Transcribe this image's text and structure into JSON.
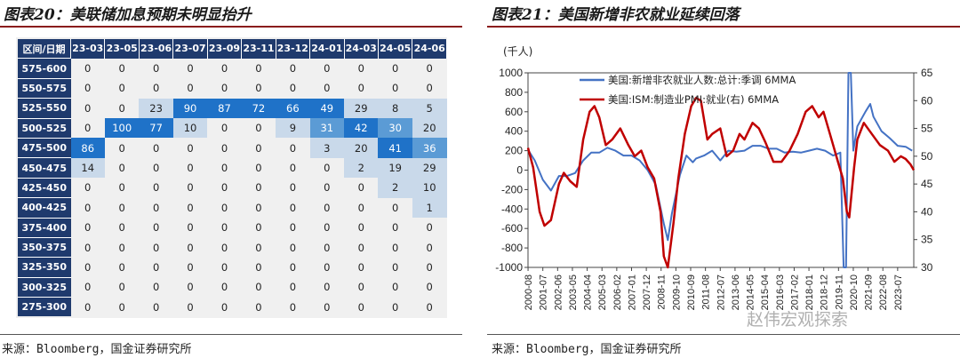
{
  "left_panel": {
    "title": "图表20：美联储加息预期未明显抬升",
    "source": "来源：Bloomberg，国金证券研究所"
  },
  "right_panel": {
    "title": "图表21：美国新增非农就业延续回落",
    "source": "来源：Bloomberg，国金证券研究所"
  },
  "watermark": "赵伟宏观探索",
  "colors": {
    "header_bg": "#1f3a6d",
    "cell_light": "#c9d9ea",
    "cell_mid": "#5b9bd5",
    "cell_strong": "#1f72c8",
    "line_blue": "#4472c4",
    "line_red": "#c00000"
  },
  "chart_data": [
    {
      "type": "table",
      "corner_label": "区间/日期",
      "columns": [
        "23-03",
        "23-05",
        "23-06",
        "23-07",
        "23-09",
        "23-11",
        "23-12",
        "24-01",
        "24-03",
        "24-05",
        "24-06"
      ],
      "rows": [
        {
          "label": "575-600",
          "values": [
            0,
            0,
            0,
            0,
            0,
            0,
            0,
            0,
            0,
            0,
            0
          ]
        },
        {
          "label": "550-575",
          "values": [
            0,
            0,
            0,
            0,
            0,
            0,
            0,
            0,
            0,
            0,
            0
          ]
        },
        {
          "label": "525-550",
          "values": [
            0,
            0,
            23,
            90,
            87,
            72,
            66,
            49,
            29,
            8,
            5
          ]
        },
        {
          "label": "500-525",
          "values": [
            0,
            100,
            77,
            10,
            0,
            0,
            9,
            31,
            42,
            30,
            20
          ]
        },
        {
          "label": "475-500",
          "values": [
            86,
            0,
            0,
            0,
            0,
            0,
            0,
            3,
            20,
            41,
            36
          ]
        },
        {
          "label": "450-475",
          "values": [
            14,
            0,
            0,
            0,
            0,
            0,
            0,
            0,
            2,
            19,
            29
          ]
        },
        {
          "label": "425-450",
          "values": [
            0,
            0,
            0,
            0,
            0,
            0,
            0,
            0,
            0,
            2,
            10
          ]
        },
        {
          "label": "400-425",
          "values": [
            0,
            0,
            0,
            0,
            0,
            0,
            0,
            0,
            0,
            0,
            1
          ]
        },
        {
          "label": "375-400",
          "values": [
            0,
            0,
            0,
            0,
            0,
            0,
            0,
            0,
            0,
            0,
            0
          ]
        },
        {
          "label": "350-375",
          "values": [
            0,
            0,
            0,
            0,
            0,
            0,
            0,
            0,
            0,
            0,
            0
          ]
        },
        {
          "label": "325-350",
          "values": [
            0,
            0,
            0,
            0,
            0,
            0,
            0,
            0,
            0,
            0,
            0
          ]
        },
        {
          "label": "300-325",
          "values": [
            0,
            0,
            0,
            0,
            0,
            0,
            0,
            0,
            0,
            0,
            0
          ]
        },
        {
          "label": "275-300",
          "values": [
            0,
            0,
            0,
            0,
            0,
            0,
            0,
            0,
            0,
            0,
            0
          ]
        }
      ]
    },
    {
      "type": "line",
      "unit_label": "(千人)",
      "x_ticks": [
        "2000-08",
        "2001-07",
        "2002-06",
        "2003-05",
        "2004-04",
        "2005-03",
        "2006-02",
        "2007-01",
        "2007-12",
        "2008-11",
        "2009-10",
        "2010-09",
        "2011-08",
        "2012-07",
        "2013-06",
        "2014-05",
        "2015-04",
        "2016-03",
        "2017-02",
        "2018-01",
        "2018-12",
        "2019-11",
        "2020-10",
        "2021-09",
        "2022-08",
        "2023-07"
      ],
      "x_range": [
        2000.58,
        2024.5
      ],
      "ylim_left": [
        -1000,
        1000
      ],
      "yticks_left": [
        -1000,
        -800,
        -600,
        -400,
        -200,
        0,
        200,
        400,
        600,
        800,
        1000
      ],
      "ylim_right": [
        30,
        65
      ],
      "yticks_right": [
        30,
        35,
        40,
        45,
        50,
        55,
        60,
        65
      ],
      "grid": false,
      "legend_position": "top-left",
      "series": [
        {
          "name": "美国:新增非农就业人数:总计:季调 6MMA",
          "axis": "left",
          "points": [
            [
              2000.58,
              210
            ],
            [
              2001.0,
              100
            ],
            [
              2001.5,
              -100
            ],
            [
              2002.0,
              -210
            ],
            [
              2002.5,
              -60
            ],
            [
              2003.0,
              -60
            ],
            [
              2003.5,
              -30
            ],
            [
              2004.0,
              100
            ],
            [
              2004.5,
              180
            ],
            [
              2005.0,
              180
            ],
            [
              2005.5,
              230
            ],
            [
              2006.0,
              200
            ],
            [
              2006.5,
              150
            ],
            [
              2007.0,
              150
            ],
            [
              2007.5,
              100
            ],
            [
              2008.0,
              0
            ],
            [
              2008.5,
              -150
            ],
            [
              2009.0,
              -550
            ],
            [
              2009.25,
              -720
            ],
            [
              2009.5,
              -450
            ],
            [
              2010.0,
              -50
            ],
            [
              2010.4,
              150
            ],
            [
              2010.8,
              80
            ],
            [
              2011.0,
              120
            ],
            [
              2011.5,
              150
            ],
            [
              2012.0,
              200
            ],
            [
              2012.5,
              100
            ],
            [
              2013.0,
              200
            ],
            [
              2013.5,
              190
            ],
            [
              2014.0,
              200
            ],
            [
              2014.5,
              250
            ],
            [
              2015.0,
              250
            ],
            [
              2015.5,
              220
            ],
            [
              2016.0,
              220
            ],
            [
              2016.5,
              180
            ],
            [
              2017.0,
              190
            ],
            [
              2017.5,
              180
            ],
            [
              2018.0,
              200
            ],
            [
              2018.5,
              220
            ],
            [
              2019.0,
              200
            ],
            [
              2019.5,
              150
            ],
            [
              2019.95,
              180
            ],
            [
              2020.15,
              -1000
            ],
            [
              2020.2,
              -1000
            ],
            [
              2020.3,
              -1000
            ],
            [
              2020.45,
              1000
            ],
            [
              2020.6,
              1000
            ],
            [
              2020.75,
              200
            ],
            [
              2021.0,
              450
            ],
            [
              2021.5,
              600
            ],
            [
              2021.8,
              680
            ],
            [
              2022.0,
              550
            ],
            [
              2022.5,
              400
            ],
            [
              2023.0,
              330
            ],
            [
              2023.5,
              250
            ],
            [
              2024.0,
              240
            ],
            [
              2024.4,
              200
            ]
          ]
        },
        {
          "name": "美国:ISM:制造业PMI:就业(右) 6MMA",
          "axis": "right",
          "points": [
            [
              2000.58,
              51.5
            ],
            [
              2000.9,
              48
            ],
            [
              2001.3,
              40
            ],
            [
              2001.6,
              37.5
            ],
            [
              2002.0,
              38.5
            ],
            [
              2002.5,
              45
            ],
            [
              2002.8,
              47
            ],
            [
              2003.2,
              45.5
            ],
            [
              2003.6,
              44.5
            ],
            [
              2004.0,
              53
            ],
            [
              2004.4,
              58
            ],
            [
              2004.7,
              59
            ],
            [
              2005.0,
              57
            ],
            [
              2005.4,
              52
            ],
            [
              2005.8,
              53
            ],
            [
              2006.3,
              55
            ],
            [
              2006.8,
              52
            ],
            [
              2007.2,
              50
            ],
            [
              2007.6,
              51
            ],
            [
              2008.0,
              48
            ],
            [
              2008.4,
              46
            ],
            [
              2008.8,
              40
            ],
            [
              2009.0,
              32
            ],
            [
              2009.25,
              30
            ],
            [
              2009.6,
              38
            ],
            [
              2009.9,
              46
            ],
            [
              2010.3,
              54
            ],
            [
              2010.7,
              59
            ],
            [
              2011.0,
              60.5
            ],
            [
              2011.3,
              60
            ],
            [
              2011.7,
              53
            ],
            [
              2012.0,
              54
            ],
            [
              2012.5,
              55
            ],
            [
              2012.9,
              50
            ],
            [
              2013.3,
              51
            ],
            [
              2013.7,
              54
            ],
            [
              2014.0,
              53
            ],
            [
              2014.5,
              56
            ],
            [
              2014.9,
              55
            ],
            [
              2015.3,
              52.5
            ],
            [
              2015.8,
              49
            ],
            [
              2016.3,
              49
            ],
            [
              2016.8,
              51
            ],
            [
              2017.3,
              54
            ],
            [
              2017.8,
              58
            ],
            [
              2018.2,
              59
            ],
            [
              2018.6,
              57
            ],
            [
              2018.9,
              58
            ],
            [
              2019.3,
              54
            ],
            [
              2019.8,
              49
            ],
            [
              2020.1,
              46
            ],
            [
              2020.35,
              40
            ],
            [
              2020.5,
              39
            ],
            [
              2020.8,
              48
            ],
            [
              2021.0,
              53
            ],
            [
              2021.4,
              56
            ],
            [
              2021.9,
              54
            ],
            [
              2022.4,
              52
            ],
            [
              2022.9,
              51
            ],
            [
              2023.3,
              49
            ],
            [
              2023.7,
              50
            ],
            [
              2024.0,
              49.5
            ],
            [
              2024.3,
              48.5
            ],
            [
              2024.5,
              47.5
            ]
          ]
        }
      ]
    }
  ]
}
